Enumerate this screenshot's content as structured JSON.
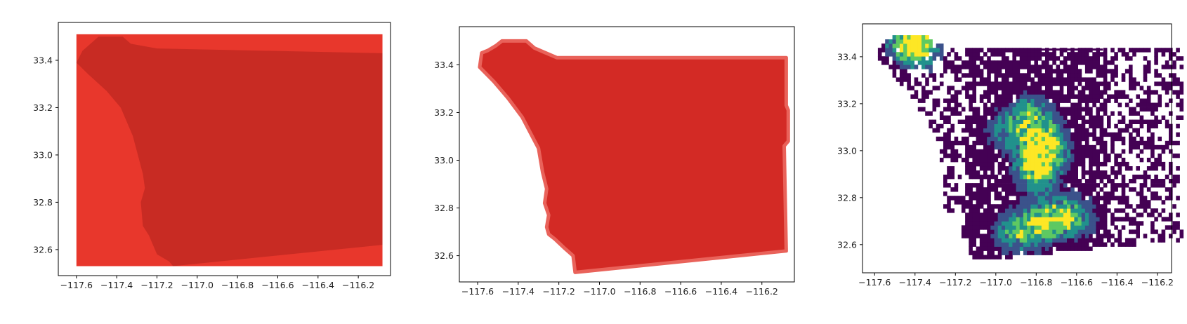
{
  "chart_data": [
    {
      "type": "area",
      "title": "",
      "xlabel": "",
      "ylabel": "",
      "xlim": [
        -117.69,
        -116.04
      ],
      "ylim": [
        32.49,
        33.56
      ],
      "xticks": [
        -117.6,
        -117.4,
        -117.2,
        -117.0,
        -116.8,
        -116.6,
        -116.4,
        -116.2
      ],
      "yticks": [
        32.6,
        32.8,
        33.0,
        33.2,
        33.4
      ],
      "x_tick_labels": [
        "−117.6",
        "−117.4",
        "−117.2",
        "−117.0",
        "−116.8",
        "−116.6",
        "−116.4",
        "−116.2"
      ],
      "y_tick_labels": [
        "32.6",
        "32.8",
        "33.0",
        "33.2",
        "33.4"
      ],
      "grid": false,
      "fill_color": "#e8372c",
      "overlay_color": "#c42a22",
      "bbox": {
        "xmin": -117.6,
        "xmax": -116.08,
        "ymin": 32.53,
        "ymax": 33.51
      },
      "county_outline": [
        [
          -117.6,
          33.39
        ],
        [
          -117.57,
          33.44
        ],
        [
          -117.49,
          33.5
        ],
        [
          -117.37,
          33.5
        ],
        [
          -117.33,
          33.47
        ],
        [
          -117.2,
          33.45
        ],
        [
          -116.08,
          33.43
        ],
        [
          -116.08,
          32.62
        ],
        [
          -117.12,
          32.53
        ],
        [
          -117.14,
          32.55
        ],
        [
          -117.2,
          32.58
        ],
        [
          -117.24,
          32.66
        ],
        [
          -117.27,
          32.7
        ],
        [
          -117.28,
          32.8
        ],
        [
          -117.26,
          32.86
        ],
        [
          -117.27,
          32.92
        ],
        [
          -117.32,
          33.08
        ],
        [
          -117.38,
          33.2
        ],
        [
          -117.45,
          33.27
        ],
        [
          -117.54,
          33.34
        ],
        [
          -117.6,
          33.39
        ]
      ]
    },
    {
      "type": "area",
      "title": "",
      "xlabel": "",
      "ylabel": "",
      "xlim": [
        -117.69,
        -116.04
      ],
      "ylim": [
        32.49,
        33.56
      ],
      "xticks": [
        -117.6,
        -117.4,
        -117.2,
        -117.0,
        -116.8,
        -116.6,
        -116.4,
        -116.2
      ],
      "yticks": [
        32.6,
        32.8,
        33.0,
        33.2,
        33.4
      ],
      "x_tick_labels": [
        "−117.6",
        "−117.4",
        "−117.2",
        "−117.0",
        "−116.8",
        "−116.6",
        "−116.4",
        "−116.2"
      ],
      "y_tick_labels": [
        "32.6",
        "32.8",
        "33.0",
        "33.2",
        "33.4"
      ],
      "grid": false,
      "fill_color": "#d32a25",
      "county_outline": [
        [
          -117.59,
          33.39
        ],
        [
          -117.58,
          33.45
        ],
        [
          -117.55,
          33.46
        ],
        [
          -117.51,
          33.48
        ],
        [
          -117.48,
          33.5
        ],
        [
          -117.36,
          33.5
        ],
        [
          -117.32,
          33.47
        ],
        [
          -117.21,
          33.43
        ],
        [
          -116.08,
          33.43
        ],
        [
          -116.08,
          33.23
        ],
        [
          -116.07,
          33.21
        ],
        [
          -116.07,
          33.08
        ],
        [
          -116.09,
          33.06
        ],
        [
          -116.08,
          32.62
        ],
        [
          -117.12,
          32.53
        ],
        [
          -117.13,
          32.6
        ],
        [
          -117.17,
          32.63
        ],
        [
          -117.22,
          32.67
        ],
        [
          -117.25,
          32.69
        ],
        [
          -117.26,
          32.72
        ],
        [
          -117.25,
          32.77
        ],
        [
          -117.27,
          32.82
        ],
        [
          -117.26,
          32.88
        ],
        [
          -117.28,
          32.95
        ],
        [
          -117.3,
          33.05
        ],
        [
          -117.38,
          33.18
        ],
        [
          -117.45,
          33.26
        ],
        [
          -117.52,
          33.33
        ],
        [
          -117.59,
          33.39
        ]
      ]
    },
    {
      "type": "heatmap",
      "title": "",
      "xlabel": "",
      "ylabel": "",
      "xlim": [
        -117.66,
        -116.13
      ],
      "ylim": [
        32.48,
        33.54
      ],
      "xticks": [
        -117.6,
        -117.4,
        -117.2,
        -117.0,
        -116.8,
        -116.6,
        -116.4,
        -116.2
      ],
      "yticks": [
        32.6,
        32.8,
        33.0,
        33.2,
        33.4
      ],
      "x_tick_labels": [
        "−117.6",
        "−117.4",
        "−117.2",
        "−117.0",
        "−116.8",
        "−116.6",
        "−116.4",
        "−116.2"
      ],
      "y_tick_labels": [
        "32.6",
        "32.8",
        "33.0",
        "33.2",
        "33.4"
      ],
      "grid": false,
      "colormap": [
        "#440154",
        "#3b528b",
        "#21918c",
        "#5ec962",
        "#fde725"
      ],
      "hotspots": [
        {
          "x": -117.38,
          "y": 33.44,
          "value": 0.8
        },
        {
          "x": -117.45,
          "y": 33.47,
          "value": 0.6
        },
        {
          "x": -116.82,
          "y": 33.15,
          "value": 0.7
        },
        {
          "x": -116.75,
          "y": 33.02,
          "value": 1.0
        },
        {
          "x": -116.8,
          "y": 32.92,
          "value": 0.85
        },
        {
          "x": -116.95,
          "y": 33.08,
          "value": 0.5
        },
        {
          "x": -116.7,
          "y": 32.72,
          "value": 0.55
        },
        {
          "x": -116.8,
          "y": 32.68,
          "value": 0.6
        },
        {
          "x": -116.92,
          "y": 32.65,
          "value": 0.55
        },
        {
          "x": -116.6,
          "y": 32.72,
          "value": 0.5
        }
      ]
    }
  ]
}
